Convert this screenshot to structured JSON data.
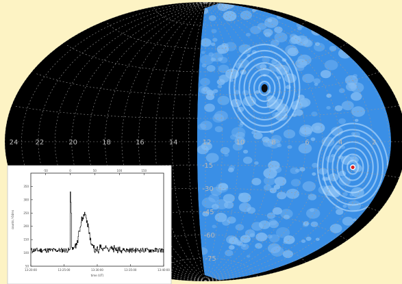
{
  "sky_map": {
    "projection": "Aitoff all-sky",
    "background_color": "#000000",
    "grid_color": "#9a9a9a",
    "page_color": "#fdf3c4",
    "ra_labels": [
      "24",
      "22",
      "20",
      "18",
      "16",
      "14",
      "12",
      "10",
      "8",
      "6",
      "4",
      "2"
    ],
    "dec_labels": [
      "-15",
      "-30",
      "-45",
      "-60",
      "-75"
    ],
    "coverage": {
      "fill_color": "#3a8fe6",
      "pattern_color": "#bfe2ff",
      "ra_range_hours": [
        0,
        12.5
      ],
      "markers": [
        {
          "name": "dark-source",
          "ra_hours": 8.0,
          "dec_deg": 33,
          "color": "#0b0b0b"
        },
        {
          "name": "red-source",
          "ra_hours": 3.0,
          "dec_deg": -13,
          "color": "#d91d1d"
        }
      ]
    }
  },
  "light_curve_inset": {
    "background_color": "#ffffff",
    "line_color": "#111111",
    "x_tick_labels": [
      "-50",
      "0",
      "50",
      "100",
      "150"
    ],
    "bottom_tick_labels": [
      "13:20:00",
      "13:25:00",
      "13:30:00",
      "13:35:00",
      "13:40:00"
    ],
    "y_tick_labels": [
      "350",
      "300",
      "250",
      "200",
      "150",
      "100",
      "50"
    ],
    "xlabel": "time (UT)",
    "ylabel": "counts / 64ms",
    "chart_data": {
      "type": "line",
      "note": "gamma-ray burst style light curve: flat background, sharp spike near t=0, broad bump around t=25-30 s",
      "x_range": [
        -80,
        190
      ],
      "y_range": [
        50,
        400
      ],
      "baseline": 110,
      "spike": {
        "t": 0,
        "peak": 330
      },
      "bump": {
        "t": 28,
        "peak": 245
      }
    }
  }
}
